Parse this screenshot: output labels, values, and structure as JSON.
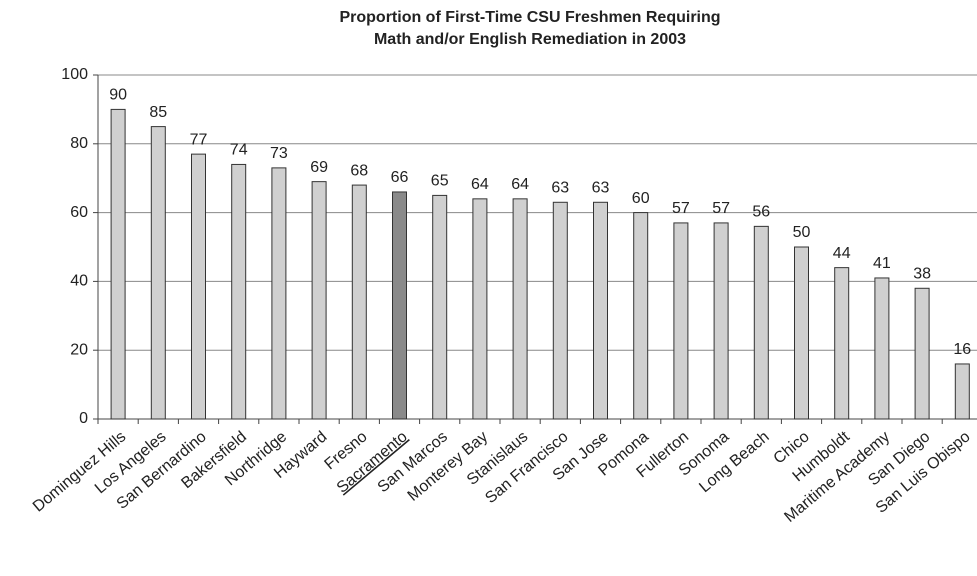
{
  "chart_data": {
    "type": "bar",
    "title": [
      "Proportion of First-Time CSU Freshmen Requiring",
      "Math and/or English Remediation in 2003"
    ],
    "categories": [
      "Dominguez Hills",
      "Los Angeles",
      "San Bernardino",
      "Bakersfield",
      "Northridge",
      "Hayward",
      "Fresno",
      "Sacramento",
      "San Marcos",
      "Monterey Bay",
      "Stanislaus",
      "San Francisco",
      "San Jose",
      "Pomona",
      "Fullerton",
      "Sonoma",
      "Long Beach",
      "Chico",
      "Humboldt",
      "Maritime Academy",
      "San Diego",
      "San Luis Obispo"
    ],
    "values": [
      90,
      85,
      77,
      74,
      73,
      69,
      68,
      66,
      65,
      64,
      64,
      63,
      63,
      60,
      57,
      57,
      56,
      50,
      44,
      41,
      38,
      16
    ],
    "color": "#d0d0d0",
    "highlight": "Sacramento",
    "highlight_color": "#8a8a8a",
    "ylim": [
      0,
      100
    ],
    "yticks": [
      0,
      20,
      40,
      60,
      80,
      100
    ],
    "grid": true
  }
}
